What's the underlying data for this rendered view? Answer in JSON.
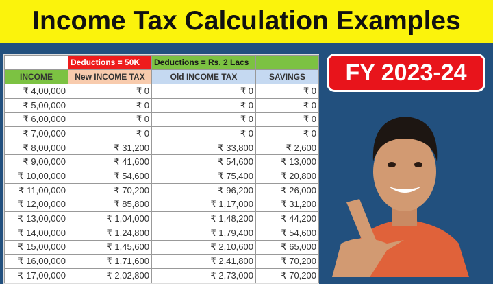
{
  "title": "Income Tax Calculation Examples",
  "badge": "FY 2023-24",
  "table": {
    "group_headers": [
      "",
      "Deductions = 50K",
      "Deductions = Rs. 2 Lacs",
      ""
    ],
    "headers": [
      "INCOME",
      "New INCOME TAX",
      "Old INCOME TAX",
      "SAVINGS"
    ],
    "rows": [
      [
        "₹ 4,00,000",
        "₹ 0",
        "₹ 0",
        "₹ 0"
      ],
      [
        "₹ 5,00,000",
        "₹ 0",
        "₹ 0",
        "₹ 0"
      ],
      [
        "₹ 6,00,000",
        "₹ 0",
        "₹ 0",
        "₹ 0"
      ],
      [
        "₹ 7,00,000",
        "₹ 0",
        "₹ 0",
        "₹ 0"
      ],
      [
        "₹ 8,00,000",
        "₹ 31,200",
        "₹ 33,800",
        "₹ 2,600"
      ],
      [
        "₹ 9,00,000",
        "₹ 41,600",
        "₹ 54,600",
        "₹ 13,000"
      ],
      [
        "₹ 10,00,000",
        "₹ 54,600",
        "₹ 75,400",
        "₹ 20,800"
      ],
      [
        "₹ 11,00,000",
        "₹ 70,200",
        "₹ 96,200",
        "₹ 26,000"
      ],
      [
        "₹ 12,00,000",
        "₹ 85,800",
        "₹ 1,17,000",
        "₹ 31,200"
      ],
      [
        "₹ 13,00,000",
        "₹ 1,04,000",
        "₹ 1,48,200",
        "₹ 44,200"
      ],
      [
        "₹ 14,00,000",
        "₹ 1,24,800",
        "₹ 1,79,400",
        "₹ 54,600"
      ],
      [
        "₹ 15,00,000",
        "₹ 1,45,600",
        "₹ 2,10,600",
        "₹ 65,000"
      ],
      [
        "₹ 16,00,000",
        "₹ 1,71,600",
        "₹ 2,41,800",
        "₹ 70,200"
      ],
      [
        "₹ 17,00,000",
        "₹ 2,02,800",
        "₹ 2,73,000",
        "₹ 70,200"
      ]
    ]
  },
  "colors": {
    "title_bg": "#fbf30c",
    "background": "#22507e",
    "badge": "#e8141b",
    "green": "#7cc242",
    "red": "#ee1c1c",
    "peach": "#f8cbad",
    "blue": "#c5d9f1"
  }
}
